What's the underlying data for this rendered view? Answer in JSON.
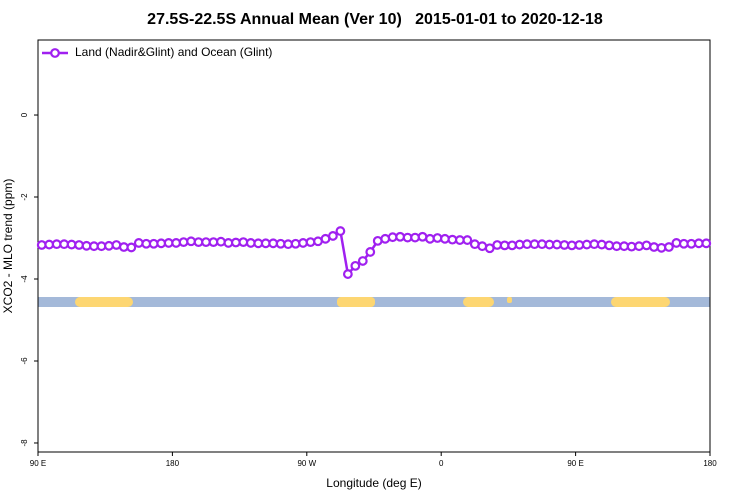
{
  "chart_data": {
    "type": "line",
    "title": "27.5S-22.5S Annual Mean (Ver 10)   2015-01-01 to 2020-12-18",
    "xlabel": "Longitude (deg E)",
    "ylabel": "XCO2 - MLO trend (ppm)",
    "xlim": [
      90,
      540
    ],
    "ylim": [
      -8.22,
      1.83
    ],
    "xticks": [
      {
        "value": 90,
        "label": "90 E"
      },
      180,
      {
        "value": 270,
        "label": "90 W"
      },
      {
        "value": 360,
        "label": "0"
      },
      {
        "value": 450,
        "label": "90 E"
      },
      {
        "value": 540,
        "label": "180"
      }
    ],
    "yticks": [
      0,
      -2,
      -4,
      -6,
      -8
    ],
    "legend": "top-left",
    "x": [
      92.5,
      97.5,
      102.5,
      107.5,
      112.5,
      117.5,
      122.5,
      127.5,
      132.5,
      137.5,
      142.5,
      147.5,
      152.5,
      157.5,
      162.5,
      167.5,
      172.5,
      177.5,
      182.5,
      187.5,
      192.5,
      197.5,
      202.5,
      207.5,
      212.5,
      217.5,
      222.5,
      227.5,
      232.5,
      237.5,
      242.5,
      247.5,
      252.5,
      257.5,
      262.5,
      267.5,
      272.5,
      277.5,
      282.5,
      287.5,
      292.5,
      297.5,
      302.5,
      307.5,
      312.5,
      317.5,
      322.5,
      327.5,
      332.5,
      337.5,
      342.5,
      347.5,
      352.5,
      357.5,
      362.5,
      367.5,
      372.5,
      377.5,
      382.5,
      387.5,
      392.5,
      397.5,
      402.5,
      407.5,
      412.5,
      417.5,
      422.5,
      427.5,
      432.5,
      437.5,
      442.5,
      447.5,
      452.5,
      457.5,
      462.5,
      467.5,
      472.5,
      477.5,
      482.5,
      487.5,
      492.5,
      497.5,
      502.5,
      507.5,
      512.5,
      517.5,
      522.5,
      527.5,
      532.5,
      537.5
    ],
    "series": [
      {
        "name": "Land (Nadir&Glint) and Ocean (Glint)",
        "color": "#a020f0",
        "values": [
          -3.17,
          -3.16,
          -3.15,
          -3.15,
          -3.16,
          -3.17,
          -3.19,
          -3.2,
          -3.2,
          -3.19,
          -3.17,
          -3.22,
          -3.23,
          -3.12,
          -3.14,
          -3.14,
          -3.13,
          -3.12,
          -3.12,
          -3.1,
          -3.08,
          -3.1,
          -3.1,
          -3.1,
          -3.09,
          -3.12,
          -3.11,
          -3.1,
          -3.12,
          -3.13,
          -3.13,
          -3.13,
          -3.14,
          -3.15,
          -3.14,
          -3.12,
          -3.1,
          -3.08,
          -3.02,
          -2.95,
          -2.83,
          -3.88,
          -3.68,
          -3.56,
          -3.34,
          -3.07,
          -3.02,
          -2.98,
          -2.97,
          -2.99,
          -2.99,
          -2.97,
          -3.02,
          -3.0,
          -3.02,
          -3.04,
          -3.05,
          -3.05,
          -3.15,
          -3.2,
          -3.25,
          -3.17,
          -3.18,
          -3.18,
          -3.16,
          -3.15,
          -3.15,
          -3.15,
          -3.16,
          -3.16,
          -3.17,
          -3.18,
          -3.17,
          -3.16,
          -3.15,
          -3.16,
          -3.18,
          -3.2,
          -3.2,
          -3.21,
          -3.2,
          -3.18,
          -3.22,
          -3.24,
          -3.22,
          -3.12,
          -3.14,
          -3.14,
          -3.13,
          -3.13
        ]
      }
    ]
  }
}
